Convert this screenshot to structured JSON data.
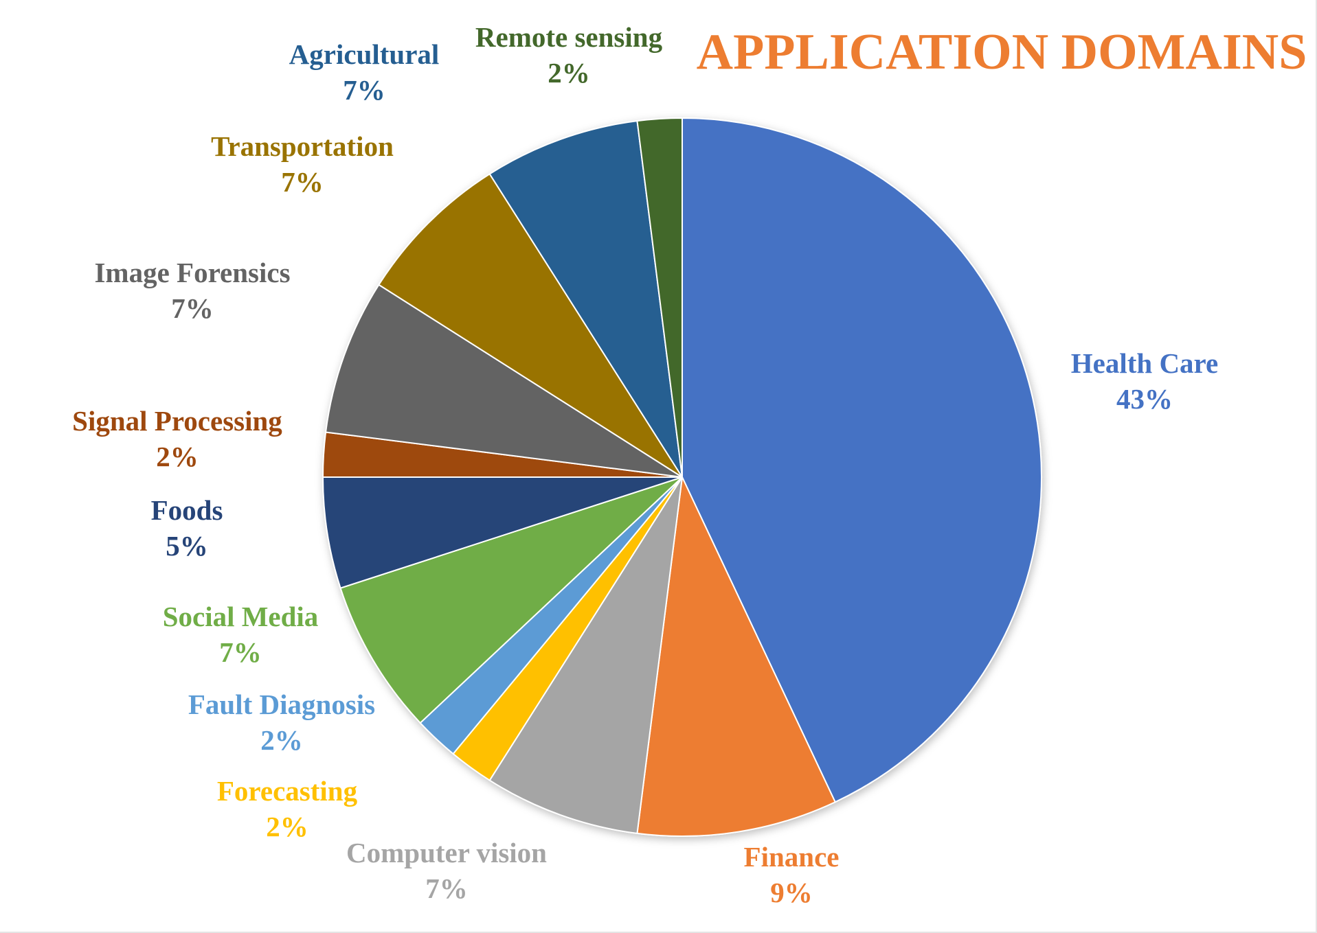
{
  "chart_data": {
    "type": "pie",
    "title": "APPLICATION DOMAINS",
    "title_color": "#ED7D31",
    "start": "12 o'clock",
    "direction": "clockwise",
    "slices": [
      {
        "label": "Health Care",
        "value": 43,
        "value_label": "43%",
        "color": "#4472C4",
        "label_color": "#4472C4"
      },
      {
        "label": "Finance",
        "value": 9,
        "value_label": "9%",
        "color": "#ED7D31",
        "label_color": "#ED7D31"
      },
      {
        "label": "Computer vision",
        "value": 7,
        "value_label": "7%",
        "color": "#A5A5A5",
        "label_color": "#A5A5A5"
      },
      {
        "label": "Forecasting",
        "value": 2,
        "value_label": "2%",
        "color": "#FFC000",
        "label_color": "#FFC000"
      },
      {
        "label": "Fault Diagnosis",
        "value": 2,
        "value_label": "2%",
        "color": "#5B9BD5",
        "label_color": "#5B9BD5"
      },
      {
        "label": "Social Media",
        "value": 7,
        "value_label": "7%",
        "color": "#70AD47",
        "label_color": "#70AD47"
      },
      {
        "label": "Foods",
        "value": 5,
        "value_label": "5%",
        "color": "#264478",
        "label_color": "#264478"
      },
      {
        "label": "Signal Processing",
        "value": 2,
        "value_label": "2%",
        "color": "#9E480E",
        "label_color": "#9E480E"
      },
      {
        "label": "Image Forensics",
        "value": 7,
        "value_label": "7%",
        "color": "#636363",
        "label_color": "#636363"
      },
      {
        "label": "Transportation",
        "value": 7,
        "value_label": "7%",
        "color": "#997300",
        "label_color": "#997300"
      },
      {
        "label": "Agricultural",
        "value": 7,
        "value_label": "7%",
        "color": "#255E91",
        "label_color": "#255E91"
      },
      {
        "label": "Remote sensing",
        "value": 2,
        "value_label": "2%",
        "color": "#43682B",
        "label_color": "#43682B"
      }
    ]
  }
}
